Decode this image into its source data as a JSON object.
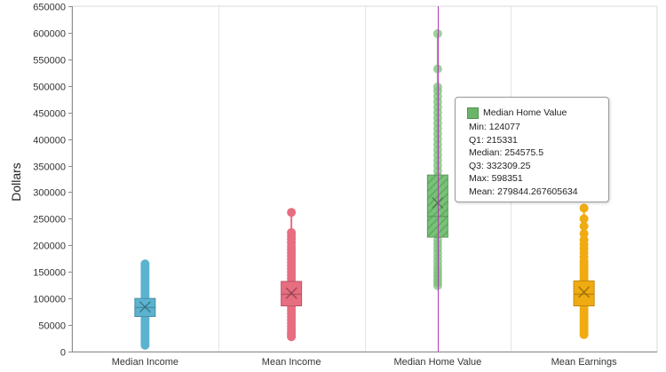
{
  "chart_data": {
    "type": "box",
    "ylabel": "Dollars",
    "ylim": [
      0,
      650000
    ],
    "ytick_step": 50000,
    "categories": [
      "Median Income",
      "Mean Income",
      "Median Home Value",
      "Mean Earnings"
    ],
    "boxes": [
      {
        "category": "Median Income",
        "color": "#5bb3cf",
        "min": 12000,
        "q1": 66000,
        "median": 83000,
        "q3": 100000,
        "max": 165000,
        "mean": 84000,
        "points": [
          12000,
          16000,
          20000,
          25000,
          30000,
          34000,
          38000,
          42000,
          46000,
          50000,
          54000,
          58000,
          62000,
          66000,
          70000,
          75000,
          80000,
          85000,
          90000,
          95000,
          100000,
          104000,
          108000,
          112000,
          116000,
          120000,
          124000,
          128000,
          132000,
          136000,
          140000,
          145000,
          150000,
          155000,
          160000,
          165000
        ]
      },
      {
        "category": "Mean Income",
        "color": "#e76d80",
        "min": 28000,
        "q1": 86000,
        "median": 108000,
        "q3": 132000,
        "max": 262000,
        "mean": 110000,
        "points": [
          28000,
          32000,
          36000,
          42000,
          48000,
          54000,
          60000,
          66000,
          72000,
          78000,
          84000,
          90000,
          96000,
          102000,
          108000,
          114000,
          120000,
          126000,
          132000,
          138000,
          144000,
          150000,
          156000,
          162000,
          168000,
          174000,
          180000,
          186000,
          192000,
          198000,
          205000,
          212000,
          218000,
          224000,
          262000
        ]
      },
      {
        "category": "Median Home Value",
        "color": "#78c178",
        "min": 124077,
        "q1": 215331,
        "median": 254575.5,
        "q3": 332309.25,
        "max": 598351,
        "mean": 279844.267605634,
        "points": [
          124077,
          130000,
          136000,
          142000,
          148000,
          155000,
          162000,
          170000,
          178000,
          186000,
          194000,
          202000,
          210000,
          220000,
          230000,
          240000,
          250000,
          260000,
          270000,
          280000,
          290000,
          300000,
          310000,
          320000,
          330000,
          340000,
          350000,
          360000,
          370000,
          380000,
          390000,
          400000,
          410000,
          420000,
          430000,
          440000,
          450000,
          460000,
          470000,
          480000,
          490000,
          498000,
          532000,
          598351
        ]
      },
      {
        "category": "Mean Earnings",
        "color": "#f0ab12",
        "min": 32000,
        "q1": 86000,
        "median": 108000,
        "q3": 133000,
        "max": 270000,
        "mean": 112000,
        "points": [
          32000,
          36000,
          40000,
          45000,
          50000,
          55000,
          60000,
          65000,
          70000,
          75000,
          80000,
          85000,
          90000,
          95000,
          100000,
          105000,
          110000,
          115000,
          120000,
          125000,
          130000,
          135000,
          140000,
          145000,
          150000,
          155000,
          160000,
          165000,
          170000,
          178000,
          186000,
          194000,
          202000,
          210000,
          222000,
          236000,
          250000,
          270000
        ]
      }
    ],
    "highlighted_category": "Median Home Value",
    "crosshair_color": "#b535b5",
    "grid": true
  },
  "tooltip": {
    "title": "Median Home Value",
    "swatch_color": "#6bb56b",
    "rows": {
      "min": "Min: 124077",
      "q1": "Q1: 215331",
      "median": "Median: 254575.5",
      "q3": "Q3: 332309.25",
      "max": "Max: 598351",
      "mean": "Mean: 279844.267605634"
    }
  }
}
